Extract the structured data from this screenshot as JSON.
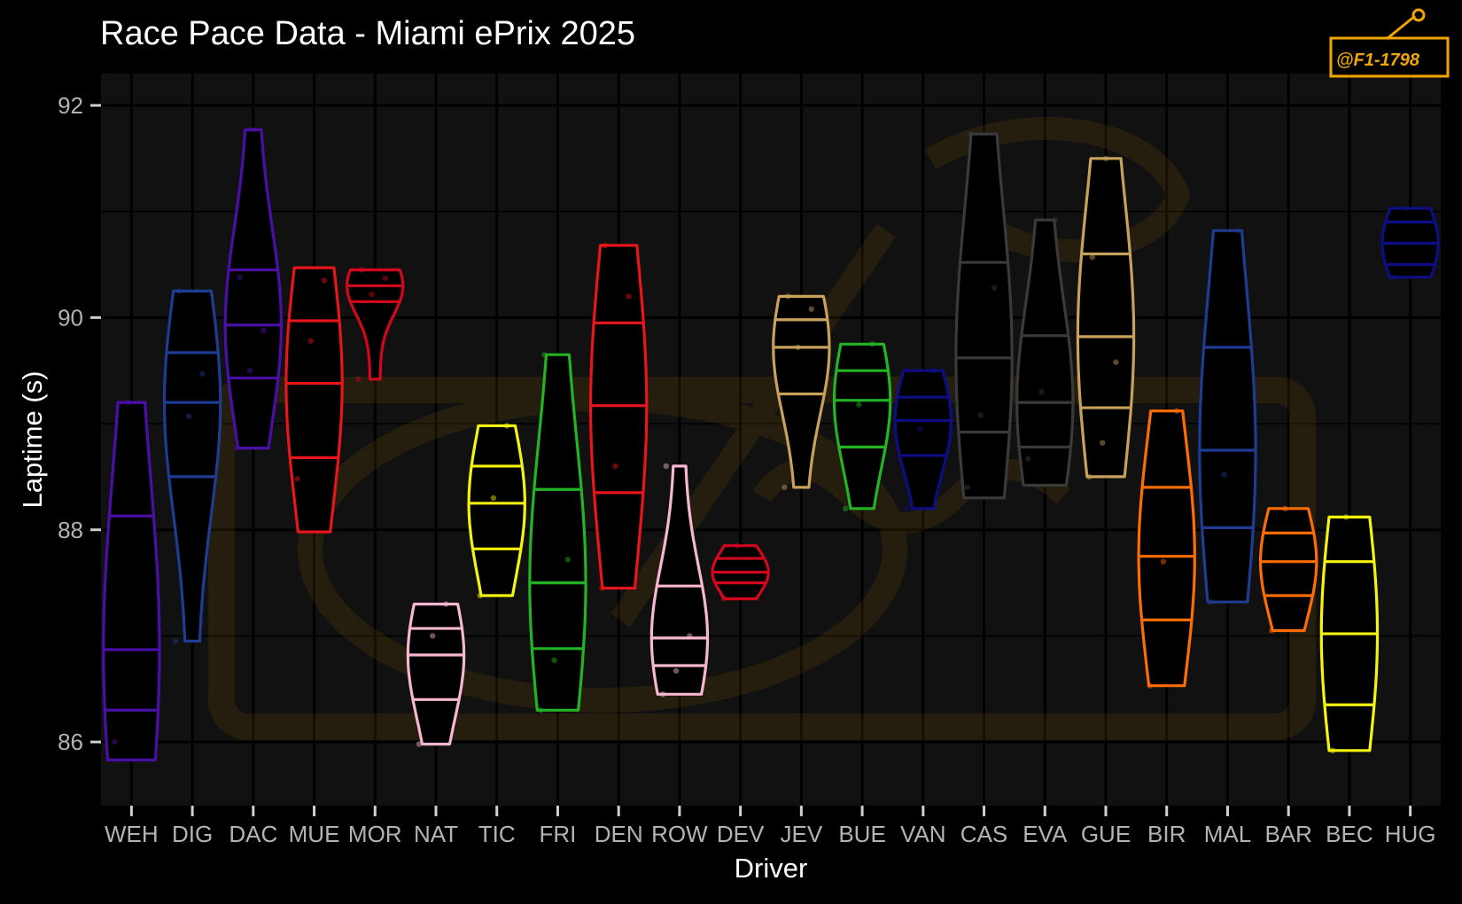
{
  "chart_data": {
    "type": "violin",
    "title": "Race Pace Data - Miami ePrix 2025",
    "xlabel": "Driver",
    "ylabel": "Laptime (s)",
    "ylim": [
      85.4,
      92.3
    ],
    "yticks": [
      86,
      88,
      90,
      92
    ],
    "grid": true,
    "legend": "none",
    "watermark": "@F1-1798",
    "drivers": [
      {
        "name": "WEH",
        "color": "#4b0fa8",
        "min": 85.83,
        "max": 89.2,
        "quartiles": [
          86.3,
          86.87,
          88.13
        ],
        "points": [
          86.0,
          89.2
        ]
      },
      {
        "name": "DIG",
        "color": "#1f3c93",
        "min": 86.95,
        "max": 90.25,
        "quartiles": [
          88.5,
          89.2,
          89.67
        ],
        "points": [
          86.95,
          89.07,
          89.47,
          90.25
        ]
      },
      {
        "name": "DAC",
        "color": "#4b0fa8",
        "min": 88.77,
        "max": 91.77,
        "quartiles": [
          89.43,
          89.93,
          90.45
        ],
        "points": [
          88.77,
          89.5,
          89.88,
          90.38,
          91.77
        ]
      },
      {
        "name": "MUE",
        "color": "#e8151b",
        "min": 87.98,
        "max": 90.47,
        "quartiles": [
          88.68,
          89.38,
          89.97
        ],
        "points": [
          88.48,
          89.78,
          90.35
        ]
      },
      {
        "name": "MOR",
        "color": "#d2071e",
        "min": 89.42,
        "max": 90.45,
        "quartiles": [
          90.15,
          90.3,
          90.45
        ],
        "points": [
          89.42,
          90.22,
          90.37,
          90.45
        ]
      },
      {
        "name": "NAT",
        "color": "#f7b7d0",
        "min": 85.98,
        "max": 87.3,
        "quartiles": [
          86.4,
          86.82,
          87.07
        ],
        "points": [
          85.98,
          87.0,
          87.3
        ]
      },
      {
        "name": "TIC",
        "color": "#f5f50c",
        "min": 87.38,
        "max": 88.98,
        "quartiles": [
          87.82,
          88.25,
          88.6
        ],
        "points": [
          87.38,
          88.3,
          88.98
        ]
      },
      {
        "name": "FRI",
        "color": "#23b423",
        "min": 86.3,
        "max": 89.65,
        "quartiles": [
          86.88,
          87.5,
          88.38
        ],
        "points": [
          86.3,
          86.77,
          87.72,
          89.65
        ]
      },
      {
        "name": "DEN",
        "color": "#e8151b",
        "min": 87.45,
        "max": 90.68,
        "quartiles": [
          88.35,
          89.17,
          89.95
        ],
        "points": [
          87.45,
          88.6,
          90.2,
          90.68
        ]
      },
      {
        "name": "ROW",
        "color": "#f7b7d0",
        "min": 86.45,
        "max": 88.6,
        "quartiles": [
          86.72,
          86.98,
          87.47
        ],
        "points": [
          86.45,
          86.67,
          87.0,
          88.6
        ]
      },
      {
        "name": "DEV",
        "color": "#d2071e",
        "min": 87.35,
        "max": 87.85,
        "quartiles": [
          87.5,
          87.6,
          87.73
        ],
        "points": [
          87.35,
          87.85
        ]
      },
      {
        "name": "JEV",
        "color": "#c8a15b",
        "min": 88.4,
        "max": 90.2,
        "quartiles": [
          89.28,
          89.72,
          89.98
        ],
        "points": [
          88.4,
          89.72,
          90.08,
          90.2
        ]
      },
      {
        "name": "BUE",
        "color": "#23b423",
        "min": 88.2,
        "max": 89.75,
        "quartiles": [
          88.78,
          89.22,
          89.5
        ],
        "points": [
          88.2,
          89.18,
          89.75
        ]
      },
      {
        "name": "VAN",
        "color": "#0d0d85",
        "min": 88.2,
        "max": 89.5,
        "quartiles": [
          88.7,
          89.03,
          89.25
        ],
        "points": [
          88.2,
          88.95,
          89.5
        ]
      },
      {
        "name": "CAS",
        "color": "#3a3a3a",
        "min": 88.3,
        "max": 91.73,
        "quartiles": [
          88.92,
          89.62,
          90.52
        ],
        "points": [
          88.4,
          89.08,
          90.28,
          91.73
        ]
      },
      {
        "name": "EVA",
        "color": "#3a3a3a",
        "min": 88.42,
        "max": 90.92,
        "quartiles": [
          88.78,
          89.2,
          89.83
        ],
        "points": [
          88.67,
          89.3,
          90.92
        ]
      },
      {
        "name": "GUE",
        "color": "#c8a15b",
        "min": 88.5,
        "max": 91.5,
        "quartiles": [
          89.15,
          89.82,
          90.6
        ],
        "points": [
          88.5,
          88.82,
          89.58,
          90.57,
          91.5
        ]
      },
      {
        "name": "BIR",
        "color": "#ff6c00",
        "min": 86.53,
        "max": 89.12,
        "quartiles": [
          87.15,
          87.75,
          88.4
        ],
        "points": [
          86.53,
          87.7,
          89.12
        ]
      },
      {
        "name": "MAL",
        "color": "#1f3c93",
        "min": 87.32,
        "max": 90.82,
        "quartiles": [
          88.02,
          88.75,
          89.72
        ],
        "points": [
          87.32,
          88.52,
          90.82
        ]
      },
      {
        "name": "BAR",
        "color": "#ff6c00",
        "min": 87.05,
        "max": 88.2,
        "quartiles": [
          87.38,
          87.7,
          87.97
        ],
        "points": [
          87.05,
          88.2
        ]
      },
      {
        "name": "BEC",
        "color": "#f5f50c",
        "min": 85.92,
        "max": 88.12,
        "quartiles": [
          86.35,
          87.02,
          87.7
        ],
        "points": [
          85.92,
          88.12
        ]
      },
      {
        "name": "HUG",
        "color": "#0d0d85",
        "min": 90.38,
        "max": 91.03,
        "quartiles": [
          90.5,
          90.7,
          90.9
        ],
        "points": [
          90.38,
          91.03
        ]
      }
    ]
  }
}
